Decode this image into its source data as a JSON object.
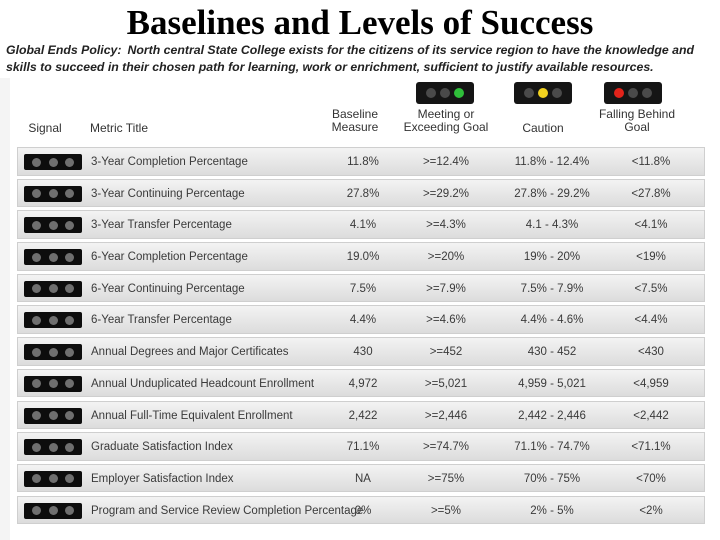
{
  "title": "Baselines and Levels of Success",
  "policy": {
    "lead": "Global Ends Policy:",
    "text": "North central State College exists for the citizens of its service region to have the knowledge and skills to succeed in their chosen path for learning, work or enrichment, sufficient to justify available resources."
  },
  "headers": {
    "signal": "Signal",
    "metric": "Metric Title",
    "baseline": "Baseline Measure",
    "meeting": "Meeting or Exceeding Goal",
    "caution": "Caution",
    "falling": "Falling Behind Goal"
  },
  "colors": {
    "green": "#2fbf3a",
    "yellow": "#f2d21f",
    "red": "#e2231a"
  },
  "rows": [
    {
      "title": "3-Year Completion Percentage",
      "baseline": "11.8%",
      "meeting": ">=12.4%",
      "caution": "11.8% - 12.4%",
      "falling": "<11.8%"
    },
    {
      "title": "3-Year Continuing Percentage",
      "baseline": "27.8%",
      "meeting": ">=29.2%",
      "caution": "27.8% - 29.2%",
      "falling": "<27.8%"
    },
    {
      "title": "3-Year Transfer Percentage",
      "baseline": "4.1%",
      "meeting": ">=4.3%",
      "caution": "4.1 - 4.3%",
      "falling": "<4.1%"
    },
    {
      "title": "6-Year Completion Percentage",
      "baseline": "19.0%",
      "meeting": ">=20%",
      "caution": "19% - 20%",
      "falling": "<19%"
    },
    {
      "title": "6-Year Continuing Percentage",
      "baseline": "7.5%",
      "meeting": ">=7.9%",
      "caution": "7.5% - 7.9%",
      "falling": "<7.5%"
    },
    {
      "title": "6-Year Transfer Percentage",
      "baseline": "4.4%",
      "meeting": ">=4.6%",
      "caution": "4.4% - 4.6%",
      "falling": "<4.4%"
    },
    {
      "title": "Annual Degrees and Major Certificates",
      "baseline": "430",
      "meeting": ">=452",
      "caution": "430 - 452",
      "falling": "<430"
    },
    {
      "title": "Annual Unduplicated Headcount Enrollment",
      "baseline": "4,972",
      "meeting": ">=5,021",
      "caution": "4,959 - 5,021",
      "falling": "<4,959"
    },
    {
      "title": "Annual Full-Time Equivalent Enrollment",
      "baseline": "2,422",
      "meeting": ">=2,446",
      "caution": "2,442 - 2,446",
      "falling": "<2,442"
    },
    {
      "title": "Graduate Satisfaction Index",
      "baseline": "71.1%",
      "meeting": ">=74.7%",
      "caution": "71.1% - 74.7%",
      "falling": "<71.1%"
    },
    {
      "title": "Employer Satisfaction Index",
      "baseline": "NA",
      "meeting": ">=75%",
      "caution": "70% - 75%",
      "falling": "<70%"
    },
    {
      "title": "Program and Service Review Completion Percentage",
      "baseline": "0%",
      "meeting": ">=5%",
      "caution": "2% - 5%",
      "falling": "<2%"
    }
  ]
}
